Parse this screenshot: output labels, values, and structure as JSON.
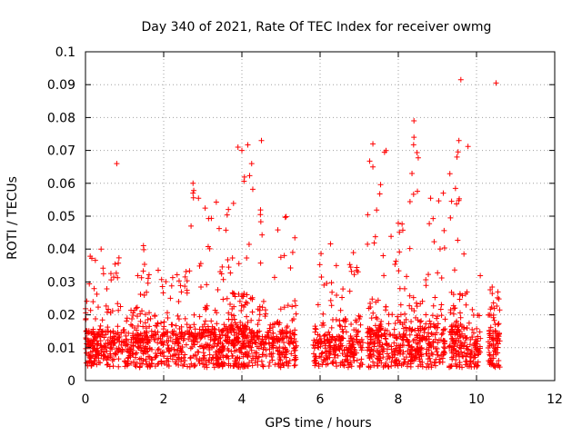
{
  "chart_data": {
    "type": "scatter",
    "title": "Day 340 of 2021, Rate Of TEC Index for receiver owmg",
    "xlabel": "GPS time / hours",
    "ylabel": "ROTI / TECUs",
    "xlim": [
      0,
      12
    ],
    "ylim": [
      0,
      0.1
    ],
    "xticks": [
      "0",
      "2",
      "4",
      "6",
      "8",
      "10",
      "12"
    ],
    "yticks": [
      "0",
      "0.01",
      "0.02",
      "0.03",
      "0.04",
      "0.05",
      "0.06",
      "0.07",
      "0.08",
      "0.09",
      "0.1"
    ],
    "grid": true,
    "legend": "none",
    "color": "#ff0000",
    "marker": "plus",
    "point_groups": [
      {
        "x_range": [
          0.0,
          0.9
        ],
        "base": 0.011,
        "spread": 0.012,
        "count": 220,
        "peak": 0.038
      },
      {
        "x_range": [
          0.9,
          1.2
        ],
        "base": 0.01,
        "spread": 0.008,
        "count": 50,
        "peak": 0.022
      },
      {
        "x_range": [
          1.2,
          1.7
        ],
        "base": 0.011,
        "spread": 0.01,
        "count": 130,
        "peak": 0.044
      },
      {
        "x_range": [
          1.7,
          2.6
        ],
        "base": 0.012,
        "spread": 0.008,
        "count": 160,
        "peak": 0.035
      },
      {
        "x_range": [
          2.6,
          3.0
        ],
        "base": 0.012,
        "spread": 0.008,
        "count": 70,
        "peak": 0.06
      },
      {
        "x_range": [
          3.0,
          3.6
        ],
        "base": 0.012,
        "spread": 0.012,
        "count": 150,
        "peak": 0.057
      },
      {
        "x_range": [
          3.6,
          4.3
        ],
        "base": 0.012,
        "spread": 0.015,
        "count": 220,
        "peak": 0.072
      },
      {
        "x_range": [
          4.3,
          5.4
        ],
        "base": 0.011,
        "spread": 0.012,
        "count": 220,
        "peak": 0.052
      },
      {
        "x_range": [
          5.8,
          6.3
        ],
        "base": 0.01,
        "spread": 0.008,
        "count": 100,
        "peak": 0.047
      },
      {
        "x_range": [
          6.3,
          7.1
        ],
        "base": 0.01,
        "spread": 0.01,
        "count": 160,
        "peak": 0.039
      },
      {
        "x_range": [
          7.2,
          7.7
        ],
        "base": 0.011,
        "spread": 0.015,
        "count": 140,
        "peak": 0.072
      },
      {
        "x_range": [
          7.7,
          8.2
        ],
        "base": 0.01,
        "spread": 0.012,
        "count": 100,
        "peak": 0.048
      },
      {
        "x_range": [
          8.2,
          8.6
        ],
        "base": 0.011,
        "spread": 0.015,
        "count": 110,
        "peak": 0.079
      },
      {
        "x_range": [
          8.6,
          9.2
        ],
        "base": 0.012,
        "spread": 0.012,
        "count": 120,
        "peak": 0.057
      },
      {
        "x_range": [
          9.3,
          9.8
        ],
        "base": 0.012,
        "spread": 0.015,
        "count": 140,
        "peak": 0.073
      },
      {
        "x_range": [
          9.8,
          10.1
        ],
        "base": 0.01,
        "spread": 0.01,
        "count": 60,
        "peak": 0.032
      },
      {
        "x_range": [
          10.3,
          10.6
        ],
        "base": 0.012,
        "spread": 0.01,
        "count": 90,
        "peak": 0.029
      }
    ],
    "outliers": [
      {
        "x": 9.6,
        "y": 0.0915
      },
      {
        "x": 10.5,
        "y": 0.0905
      },
      {
        "x": 4.5,
        "y": 0.073
      },
      {
        "x": 8.4,
        "y": 0.079
      },
      {
        "x": 8.4,
        "y": 0.074
      },
      {
        "x": 7.35,
        "y": 0.072
      },
      {
        "x": 9.55,
        "y": 0.073
      },
      {
        "x": 3.9,
        "y": 0.071
      },
      {
        "x": 4.0,
        "y": 0.07
      },
      {
        "x": 0.8,
        "y": 0.066
      },
      {
        "x": 4.25,
        "y": 0.066
      },
      {
        "x": 7.35,
        "y": 0.065
      },
      {
        "x": 8.35,
        "y": 0.063
      },
      {
        "x": 9.5,
        "y": 0.068
      },
      {
        "x": 2.75,
        "y": 0.06
      },
      {
        "x": 2.75,
        "y": 0.057
      },
      {
        "x": 9.15,
        "y": 0.057
      },
      {
        "x": 2.7,
        "y": 0.047
      },
      {
        "x": 5.3,
        "y": 0.039
      },
      {
        "x": 0.4,
        "y": 0.04
      }
    ]
  }
}
